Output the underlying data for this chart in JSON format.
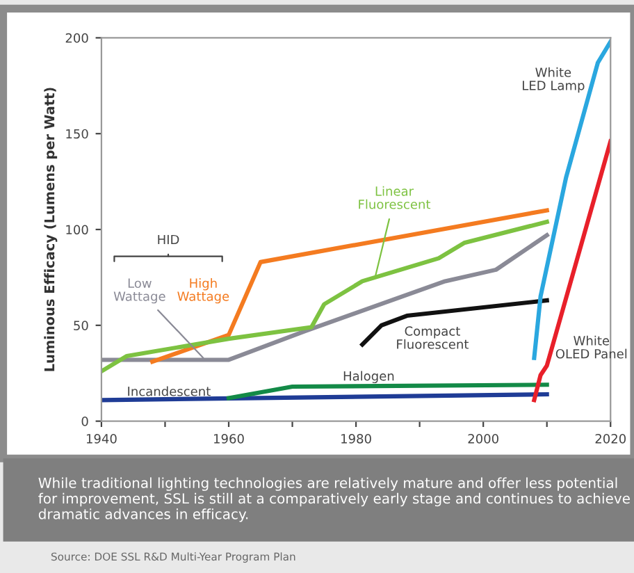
{
  "chart_data": {
    "type": "line",
    "ylabel": "Luminous Efficacy (Lumens per Watt)",
    "xlim": [
      1940,
      2020
    ],
    "xticks": [
      1940,
      {
        "value": 1950,
        "label": null
      },
      1960,
      {
        "value": 1970,
        "label": null
      },
      1980,
      {
        "value": 1990,
        "label": null
      },
      2000,
      {
        "value": 2010,
        "label": null
      },
      2020
    ],
    "ylim": [
      0,
      200
    ],
    "yticks": [
      0,
      50,
      100,
      150,
      200
    ],
    "grid": false,
    "legend": false,
    "marker": "none",
    "line_style": "solid",
    "series": [
      {
        "name": "Incandescent",
        "color": "#1f3c96",
        "x": [
          1940,
          2010
        ],
        "values": [
          11,
          14
        ]
      },
      {
        "name": "Halogen",
        "color": "#138a47",
        "x": [
          1960,
          1970,
          2010
        ],
        "values": [
          12,
          18,
          19
        ]
      },
      {
        "name": "Low Wattage",
        "color": "#8a8a96",
        "x": [
          1940,
          1960,
          1972,
          1994,
          2002,
          2010
        ],
        "values": [
          32,
          32,
          47,
          73,
          79,
          97
        ]
      },
      {
        "name": "High Wattage",
        "color": "#f47b20",
        "x": [
          1948,
          1960,
          1965,
          2010
        ],
        "values": [
          31,
          45,
          83,
          110
        ]
      },
      {
        "name": "Linear Fluorescent",
        "color": "#7dc241",
        "x": [
          1940,
          1944,
          1960,
          1973,
          1975,
          1981,
          1993,
          1997,
          2010
        ],
        "values": [
          26,
          34,
          43,
          49,
          61,
          73,
          85,
          93,
          104
        ]
      },
      {
        "name": "Compact Fluorescent",
        "color": "#111111",
        "x": [
          1981,
          1984,
          1988,
          2010
        ],
        "values": [
          40,
          50,
          55,
          63
        ]
      },
      {
        "name": "White LED Lamp",
        "color": "#2aa7df",
        "x": [
          2008,
          2009,
          2013,
          2018,
          2020
        ],
        "values": [
          33,
          65,
          127,
          187,
          198
        ]
      },
      {
        "name": "White OLED Panel",
        "color": "#e8202a",
        "x": [
          2008,
          2009,
          2010,
          2020
        ],
        "values": [
          11,
          24,
          29,
          146
        ]
      }
    ],
    "annotations": [
      "HID",
      "While traditional lighting technologies are relatively mature and offer less potential for improvement, SSL is still at a comparatively early stage and continues to achieve dramatic advances in efficacy.",
      "Source: DOE SSL R&D Multi-Year Program Plan"
    ]
  }
}
